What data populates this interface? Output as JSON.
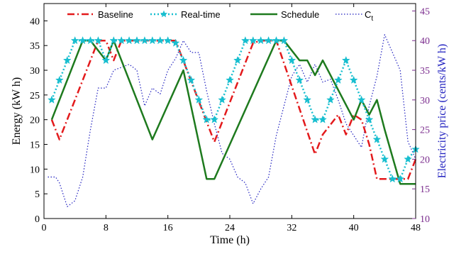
{
  "chart_data": {
    "type": "line",
    "xlabel": "Time (h)",
    "ylabel": "Energy (kW h)",
    "y2label": "Electricity price (cents/kW h)",
    "xlim": [
      0,
      48
    ],
    "ylim": [
      0,
      43.5
    ],
    "y2lim": [
      10,
      46.25
    ],
    "xticks": [
      0,
      8,
      16,
      24,
      32,
      40,
      48
    ],
    "yticks": [
      0,
      5,
      10,
      15,
      20,
      25,
      30,
      35,
      40
    ],
    "y2ticks": [
      10,
      15,
      20,
      25,
      30,
      35,
      40,
      45
    ],
    "grid": false,
    "legend_position": "top",
    "colors": {
      "baseline": "#e31a1c",
      "realtime": "#17becf",
      "schedule": "#1e7a1e",
      "price": "#1f1fbf",
      "right_axis": "#7b2d8e"
    },
    "series": [
      {
        "name": "Baseline",
        "axis": "left",
        "x": [
          1,
          2,
          5,
          7,
          8,
          9,
          10,
          16,
          17,
          22,
          27,
          28,
          29,
          30,
          35,
          36,
          38,
          39,
          40,
          41,
          42,
          43,
          45,
          46,
          47,
          48
        ],
        "y": [
          20,
          16,
          28,
          36,
          36,
          32,
          36,
          36,
          36,
          15.5,
          35.5,
          36,
          36,
          36,
          13,
          17,
          21,
          17,
          21,
          20,
          15,
          8,
          8,
          8,
          8,
          12
        ]
      },
      {
        "name": "Real-time",
        "axis": "left",
        "x": [
          1,
          2,
          3,
          4,
          5,
          6,
          7,
          8,
          9,
          10,
          11,
          12,
          13,
          14,
          15,
          16,
          17,
          18,
          19,
          20,
          21,
          22,
          23,
          24,
          25,
          26,
          27,
          28,
          29,
          30,
          31,
          32,
          33,
          34,
          35,
          36,
          37,
          38,
          39,
          40,
          41,
          42,
          43,
          44,
          45,
          46,
          47,
          48
        ],
        "y": [
          24,
          28,
          32,
          36,
          36,
          36,
          36,
          32,
          36,
          36,
          36,
          36,
          36,
          36,
          36,
          36,
          35.5,
          32,
          28,
          24,
          20,
          20,
          24,
          28,
          32,
          36,
          36,
          36,
          36,
          36,
          36,
          32,
          28,
          24,
          20,
          20,
          24,
          28,
          32,
          28,
          24,
          20,
          16,
          12,
          8,
          8,
          12,
          14
        ]
      },
      {
        "name": "Schedule",
        "axis": "left",
        "x": [
          1,
          5,
          6,
          8,
          9,
          14,
          18,
          21,
          22,
          30,
          31,
          33,
          34,
          35,
          36,
          40,
          41,
          42,
          43,
          44,
          46,
          48
        ],
        "y": [
          20,
          36,
          36,
          32,
          36,
          16,
          30,
          8,
          8,
          36,
          36,
          32,
          32,
          29,
          32,
          20,
          24,
          21,
          24,
          18,
          7,
          7
        ]
      },
      {
        "name": "C",
        "name_subscript": "t",
        "axis": "right",
        "x": [
          0.5,
          1.5,
          2,
          3,
          4,
          5,
          6,
          7,
          8,
          9,
          10,
          11,
          12,
          13,
          14,
          15,
          16,
          17,
          18,
          19,
          20,
          21,
          22,
          23,
          24,
          25,
          26,
          27,
          28,
          29,
          30,
          31,
          32,
          33,
          34,
          35,
          36,
          37,
          38,
          39,
          40,
          41,
          42,
          43,
          44,
          45,
          46,
          47,
          48
        ],
        "y": [
          17,
          17,
          16,
          12,
          13,
          17,
          25,
          32,
          32,
          35,
          35.5,
          36,
          35,
          29,
          32,
          31,
          35,
          37,
          40,
          38,
          38,
          31.5,
          26,
          21,
          20,
          17,
          16,
          12.5,
          15,
          17,
          24,
          29,
          34,
          36,
          33,
          36,
          33,
          33.5,
          30,
          26,
          24,
          22,
          29,
          34,
          41,
          38,
          35,
          23,
          20
        ]
      }
    ]
  }
}
